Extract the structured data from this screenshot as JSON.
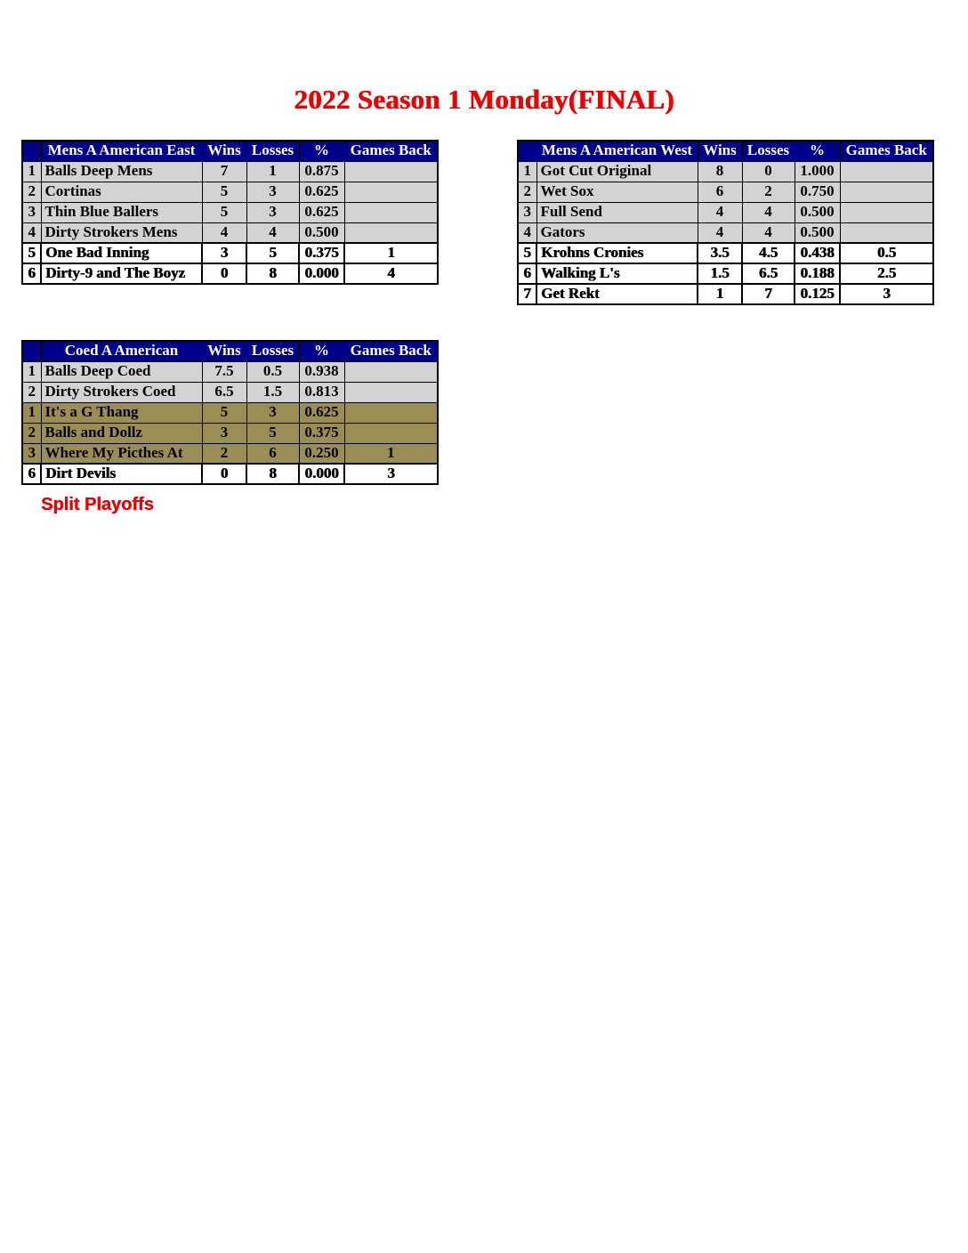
{
  "page": {
    "title": "2022 Season 1 Monday(FINAL)",
    "footnote": "Split Playoffs"
  },
  "colors": {
    "header_bg": "#00008B",
    "header_text": "#FFFFFF",
    "row_gray": "#D3D3D3",
    "row_olive": "#9A8E55",
    "row_white": "#FFFFFF",
    "accent_red": "#EE0000",
    "border": "#000000"
  },
  "column_headers": [
    "Wins",
    "Losses",
    "%",
    "Games Back"
  ],
  "tables": [
    {
      "name": "Mens A American East",
      "rows": [
        {
          "rank": "1",
          "team": "Balls Deep Mens",
          "wins": "7",
          "losses": "1",
          "pct": "0.875",
          "games_back": "",
          "style": "gray"
        },
        {
          "rank": "2",
          "team": "Cortinas",
          "wins": "5",
          "losses": "3",
          "pct": "0.625",
          "games_back": "",
          "style": "gray"
        },
        {
          "rank": "3",
          "team": "Thin Blue Ballers",
          "wins": "5",
          "losses": "3",
          "pct": "0.625",
          "games_back": "",
          "style": "gray"
        },
        {
          "rank": "4",
          "team": "Dirty Strokers Mens",
          "wins": "4",
          "losses": "4",
          "pct": "0.500",
          "games_back": "",
          "style": "gray"
        },
        {
          "rank": "5",
          "team": "One Bad Inning",
          "wins": "3",
          "losses": "5",
          "pct": "0.375",
          "games_back": "1",
          "style": "white"
        },
        {
          "rank": "6",
          "team": "Dirty-9 and The Boyz",
          "wins": "0",
          "losses": "8",
          "pct": "0.000",
          "games_back": "4",
          "style": "white"
        }
      ]
    },
    {
      "name": "Mens A American West",
      "rows": [
        {
          "rank": "1",
          "team": "Got Cut Original",
          "wins": "8",
          "losses": "0",
          "pct": "1.000",
          "games_back": "",
          "style": "gray"
        },
        {
          "rank": "2",
          "team": "Wet Sox",
          "wins": "6",
          "losses": "2",
          "pct": "0.750",
          "games_back": "",
          "style": "gray"
        },
        {
          "rank": "3",
          "team": "Full Send",
          "wins": "4",
          "losses": "4",
          "pct": "0.500",
          "games_back": "",
          "style": "gray"
        },
        {
          "rank": "4",
          "team": "Gators",
          "wins": "4",
          "losses": "4",
          "pct": "0.500",
          "games_back": "",
          "style": "gray"
        },
        {
          "rank": "5",
          "team": "Krohns Cronies",
          "wins": "3.5",
          "losses": "4.5",
          "pct": "0.438",
          "games_back": "0.5",
          "style": "white"
        },
        {
          "rank": "6",
          "team": "Walking L's",
          "wins": "1.5",
          "losses": "6.5",
          "pct": "0.188",
          "games_back": "2.5",
          "style": "white"
        },
        {
          "rank": "7",
          "team": "Get Rekt",
          "wins": "1",
          "losses": "7",
          "pct": "0.125",
          "games_back": "3",
          "style": "white"
        }
      ]
    },
    {
      "name": "Coed A American",
      "rows": [
        {
          "rank": "1",
          "team": "Balls Deep Coed",
          "wins": "7.5",
          "losses": "0.5",
          "pct": "0.938",
          "games_back": "",
          "style": "gray"
        },
        {
          "rank": "2",
          "team": "Dirty Strokers Coed",
          "wins": "6.5",
          "losses": "1.5",
          "pct": "0.813",
          "games_back": "",
          "style": "gray"
        },
        {
          "rank": "1",
          "team": "It's a G Thang",
          "wins": "5",
          "losses": "3",
          "pct": "0.625",
          "games_back": "",
          "style": "olive"
        },
        {
          "rank": "2",
          "team": "Balls and Dollz",
          "wins": "3",
          "losses": "5",
          "pct": "0.375",
          "games_back": "",
          "style": "olive"
        },
        {
          "rank": "3",
          "team": "Where My Picthes At",
          "wins": "2",
          "losses": "6",
          "pct": "0.250",
          "games_back": "1",
          "style": "olive"
        },
        {
          "rank": "6",
          "team": "Dirt Devils",
          "wins": "0",
          "losses": "8",
          "pct": "0.000",
          "games_back": "3",
          "style": "white"
        }
      ]
    }
  ]
}
